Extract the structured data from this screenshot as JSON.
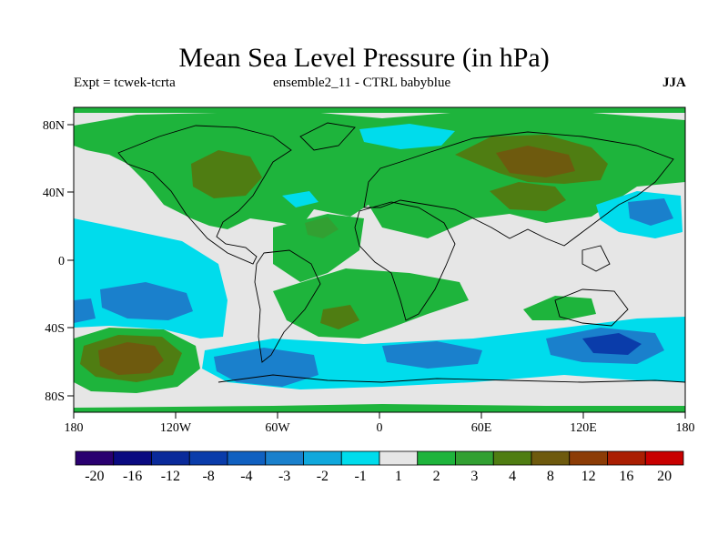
{
  "title": "Mean Sea Level Pressure (in hPa)",
  "subtitle_left": "Expt = tcwek-tcrta",
  "subtitle_center": "ensemble2_11 - CTRL babyblue",
  "subtitle_right": "JJA",
  "chart_data": {
    "type": "heatmap",
    "title": "Mean Sea Level Pressure (in hPa)",
    "variable": "MSLP difference",
    "season": "JJA",
    "x_ticks": [
      "180",
      "120W",
      "60W",
      "0",
      "60E",
      "120E",
      "180"
    ],
    "y_ticks": [
      "80N",
      "40N",
      "0",
      "40S",
      "80S"
    ],
    "lon_range": [
      -180,
      180
    ],
    "lat_range": [
      -90,
      90
    ],
    "colorbar_labels": [
      "-20",
      "-16",
      "-12",
      "-8",
      "-4",
      "-3",
      "-2",
      "-1",
      "1",
      "2",
      "3",
      "4",
      "8",
      "12",
      "16",
      "20"
    ],
    "colorbar_colors": [
      "#2a0070",
      "#0a0a80",
      "#0a2a9a",
      "#0a3caa",
      "#1060c0",
      "#1a80cc",
      "#10a8dc",
      "#00dcec",
      "#e6e6e6",
      "#1eb43c",
      "#32a032",
      "#4f7d12",
      "#6e5a0e",
      "#8c3c06",
      "#aa1e02",
      "#c80000"
    ]
  }
}
